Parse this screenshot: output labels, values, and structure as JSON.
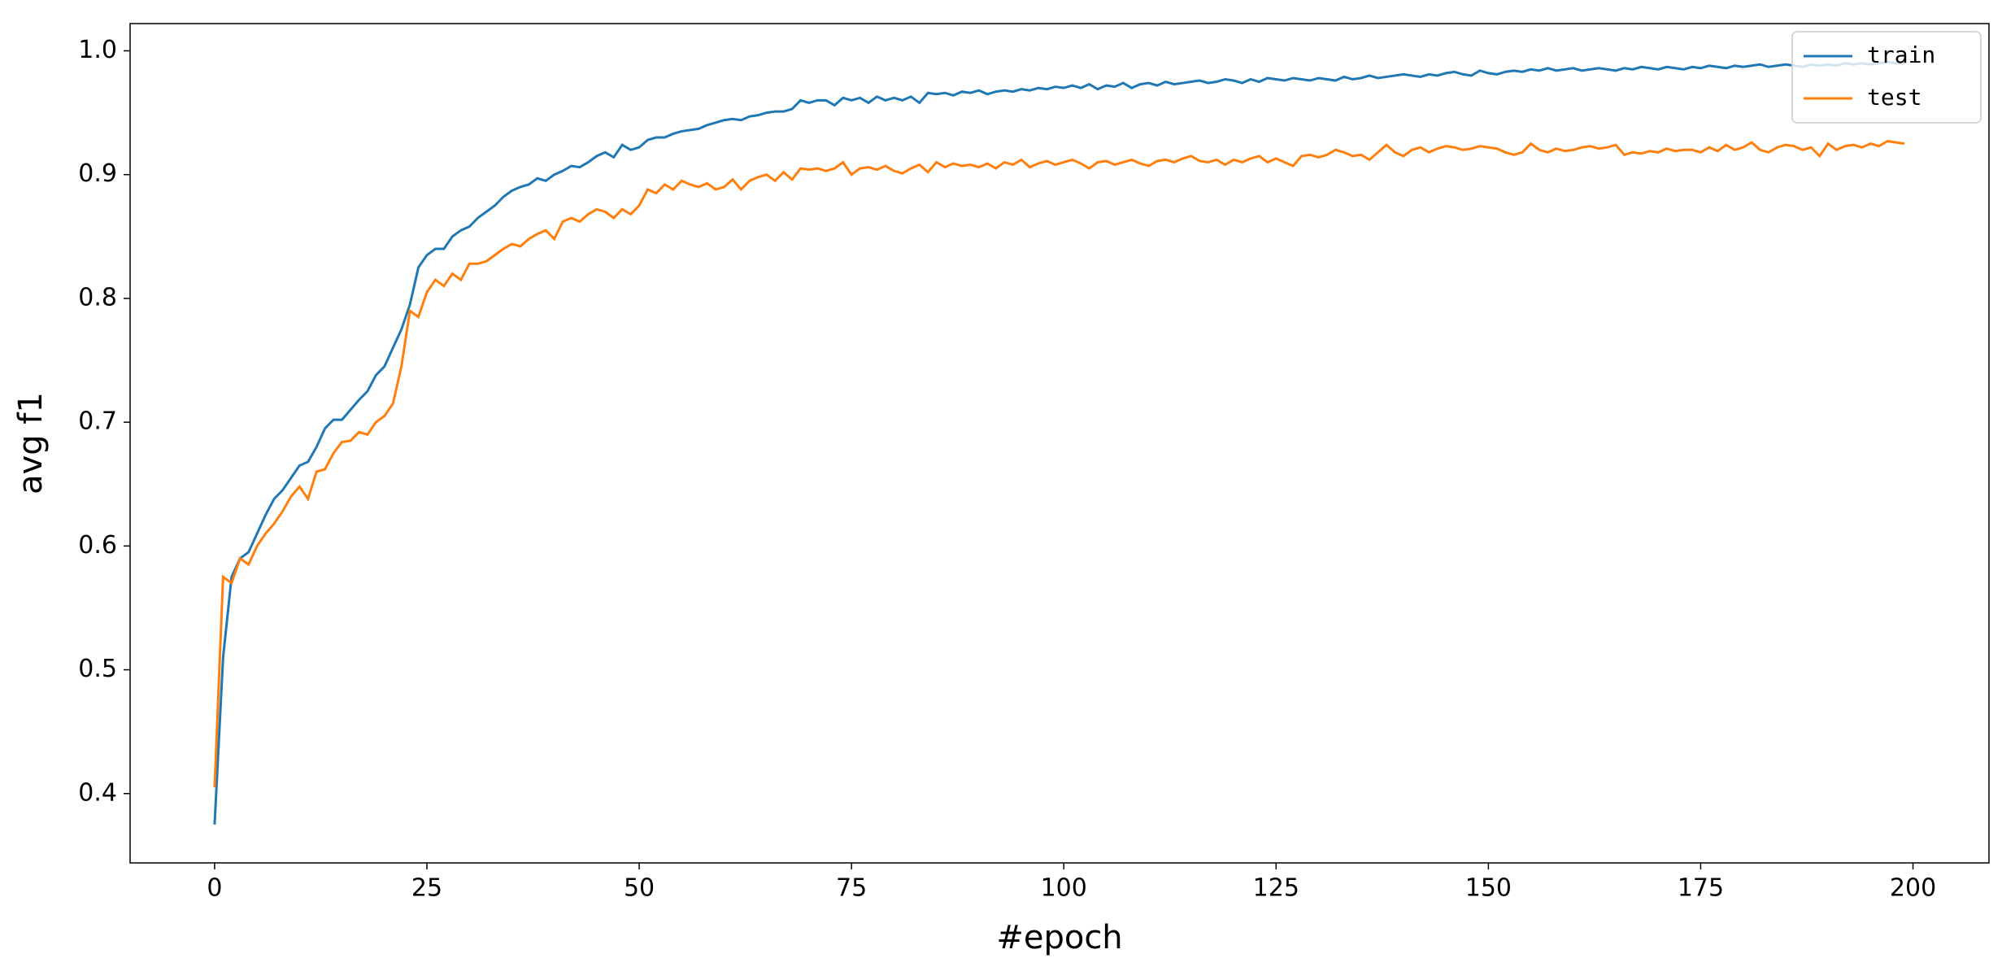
{
  "chart_data": {
    "type": "line",
    "xlabel": "#epoch",
    "ylabel": "avg f1",
    "x": [
      0,
      1,
      2,
      3,
      4,
      5,
      6,
      7,
      8,
      9,
      10,
      11,
      12,
      13,
      14,
      15,
      16,
      17,
      18,
      19,
      20,
      21,
      22,
      23,
      24,
      25,
      26,
      27,
      28,
      29,
      30,
      31,
      32,
      33,
      34,
      35,
      36,
      37,
      38,
      39,
      40,
      41,
      42,
      43,
      44,
      45,
      46,
      47,
      48,
      49,
      50,
      51,
      52,
      53,
      54,
      55,
      56,
      57,
      58,
      59,
      60,
      61,
      62,
      63,
      64,
      65,
      66,
      67,
      68,
      69,
      70,
      71,
      72,
      73,
      74,
      75,
      76,
      77,
      78,
      79,
      80,
      81,
      82,
      83,
      84,
      85,
      86,
      87,
      88,
      89,
      90,
      91,
      92,
      93,
      94,
      95,
      96,
      97,
      98,
      99,
      100,
      101,
      102,
      103,
      104,
      105,
      106,
      107,
      108,
      109,
      110,
      111,
      112,
      113,
      114,
      115,
      116,
      117,
      118,
      119,
      120,
      121,
      122,
      123,
      124,
      125,
      126,
      127,
      128,
      129,
      130,
      131,
      132,
      133,
      134,
      135,
      136,
      137,
      138,
      139,
      140,
      141,
      142,
      143,
      144,
      145,
      146,
      147,
      148,
      149,
      150,
      151,
      152,
      153,
      154,
      155,
      156,
      157,
      158,
      159,
      160,
      161,
      162,
      163,
      164,
      165,
      166,
      167,
      168,
      169,
      170,
      171,
      172,
      173,
      174,
      175,
      176,
      177,
      178,
      179,
      180,
      181,
      182,
      183,
      184,
      185,
      186,
      187,
      188,
      189,
      190,
      191,
      192,
      193,
      194,
      195,
      196,
      197,
      198,
      199
    ],
    "series": [
      {
        "name": "train",
        "color": "#1f77b4",
        "values": [
          0.375,
          0.51,
          0.575,
          0.59,
          0.595,
          0.61,
          0.625,
          0.638,
          0.645,
          0.655,
          0.665,
          0.668,
          0.68,
          0.695,
          0.702,
          0.702,
          0.71,
          0.718,
          0.725,
          0.738,
          0.745,
          0.76,
          0.775,
          0.795,
          0.825,
          0.835,
          0.84,
          0.84,
          0.85,
          0.855,
          0.858,
          0.865,
          0.87,
          0.875,
          0.882,
          0.887,
          0.89,
          0.892,
          0.897,
          0.895,
          0.9,
          0.903,
          0.907,
          0.906,
          0.91,
          0.915,
          0.918,
          0.914,
          0.924,
          0.92,
          0.922,
          0.928,
          0.93,
          0.93,
          0.933,
          0.935,
          0.936,
          0.937,
          0.94,
          0.942,
          0.944,
          0.945,
          0.944,
          0.947,
          0.948,
          0.95,
          0.951,
          0.951,
          0.953,
          0.96,
          0.958,
          0.96,
          0.96,
          0.956,
          0.962,
          0.96,
          0.962,
          0.958,
          0.963,
          0.96,
          0.962,
          0.96,
          0.963,
          0.958,
          0.966,
          0.965,
          0.966,
          0.964,
          0.967,
          0.966,
          0.968,
          0.965,
          0.967,
          0.968,
          0.967,
          0.969,
          0.968,
          0.97,
          0.969,
          0.971,
          0.97,
          0.972,
          0.97,
          0.973,
          0.969,
          0.972,
          0.971,
          0.974,
          0.97,
          0.973,
          0.974,
          0.972,
          0.975,
          0.973,
          0.974,
          0.975,
          0.976,
          0.974,
          0.975,
          0.977,
          0.976,
          0.974,
          0.977,
          0.975,
          0.978,
          0.977,
          0.976,
          0.978,
          0.977,
          0.976,
          0.978,
          0.977,
          0.976,
          0.979,
          0.977,
          0.978,
          0.98,
          0.978,
          0.979,
          0.98,
          0.981,
          0.98,
          0.979,
          0.981,
          0.98,
          0.982,
          0.983,
          0.981,
          0.98,
          0.984,
          0.982,
          0.981,
          0.983,
          0.984,
          0.983,
          0.985,
          0.984,
          0.986,
          0.984,
          0.985,
          0.986,
          0.984,
          0.985,
          0.986,
          0.985,
          0.984,
          0.986,
          0.985,
          0.987,
          0.986,
          0.985,
          0.987,
          0.986,
          0.985,
          0.987,
          0.986,
          0.988,
          0.987,
          0.986,
          0.988,
          0.987,
          0.988,
          0.989,
          0.987,
          0.988,
          0.989,
          0.988,
          0.987,
          0.989,
          0.988,
          0.989,
          0.988,
          0.99,
          0.989,
          0.99,
          0.989,
          0.99,
          0.991,
          0.99,
          0.99
        ]
      },
      {
        "name": "test",
        "color": "#ff7f0e",
        "values": [
          0.405,
          0.575,
          0.57,
          0.59,
          0.585,
          0.6,
          0.61,
          0.618,
          0.628,
          0.64,
          0.648,
          0.638,
          0.66,
          0.662,
          0.675,
          0.684,
          0.685,
          0.692,
          0.69,
          0.7,
          0.705,
          0.715,
          0.745,
          0.79,
          0.785,
          0.805,
          0.815,
          0.81,
          0.82,
          0.815,
          0.828,
          0.828,
          0.83,
          0.835,
          0.84,
          0.844,
          0.842,
          0.848,
          0.852,
          0.855,
          0.848,
          0.862,
          0.865,
          0.862,
          0.868,
          0.872,
          0.87,
          0.865,
          0.872,
          0.868,
          0.875,
          0.888,
          0.885,
          0.892,
          0.888,
          0.895,
          0.892,
          0.89,
          0.893,
          0.888,
          0.89,
          0.896,
          0.888,
          0.895,
          0.898,
          0.9,
          0.895,
          0.902,
          0.896,
          0.905,
          0.904,
          0.905,
          0.903,
          0.905,
          0.91,
          0.9,
          0.905,
          0.906,
          0.904,
          0.907,
          0.903,
          0.901,
          0.905,
          0.908,
          0.902,
          0.91,
          0.906,
          0.909,
          0.907,
          0.908,
          0.906,
          0.909,
          0.905,
          0.91,
          0.908,
          0.912,
          0.906,
          0.909,
          0.911,
          0.908,
          0.91,
          0.912,
          0.909,
          0.905,
          0.91,
          0.911,
          0.908,
          0.91,
          0.912,
          0.909,
          0.907,
          0.911,
          0.912,
          0.91,
          0.913,
          0.915,
          0.911,
          0.91,
          0.912,
          0.908,
          0.912,
          0.91,
          0.913,
          0.915,
          0.91,
          0.913,
          0.91,
          0.907,
          0.915,
          0.916,
          0.914,
          0.916,
          0.92,
          0.918,
          0.915,
          0.916,
          0.912,
          0.918,
          0.924,
          0.918,
          0.915,
          0.92,
          0.922,
          0.918,
          0.921,
          0.923,
          0.922,
          0.92,
          0.921,
          0.923,
          0.922,
          0.921,
          0.918,
          0.916,
          0.918,
          0.925,
          0.92,
          0.918,
          0.921,
          0.919,
          0.92,
          0.922,
          0.923,
          0.921,
          0.922,
          0.924,
          0.916,
          0.918,
          0.917,
          0.919,
          0.918,
          0.921,
          0.919,
          0.92,
          0.92,
          0.918,
          0.922,
          0.919,
          0.924,
          0.92,
          0.922,
          0.926,
          0.92,
          0.918,
          0.922,
          0.924,
          0.923,
          0.92,
          0.922,
          0.915,
          0.925,
          0.92,
          0.923,
          0.924,
          0.922,
          0.925,
          0.923,
          0.927,
          0.926,
          0.925
        ]
      }
    ],
    "xlim": [
      -9.95,
      208.95
    ],
    "xticks": [
      0,
      25,
      50,
      75,
      100,
      125,
      150,
      175,
      200
    ],
    "ylim": [
      0.344,
      1.022
    ],
    "yticks": [
      0.4,
      0.5,
      0.6,
      0.7,
      0.8,
      0.9,
      {
        "value": 1,
        "label": "1.0"
      }
    ],
    "grid": false,
    "legend": "upper right"
  }
}
